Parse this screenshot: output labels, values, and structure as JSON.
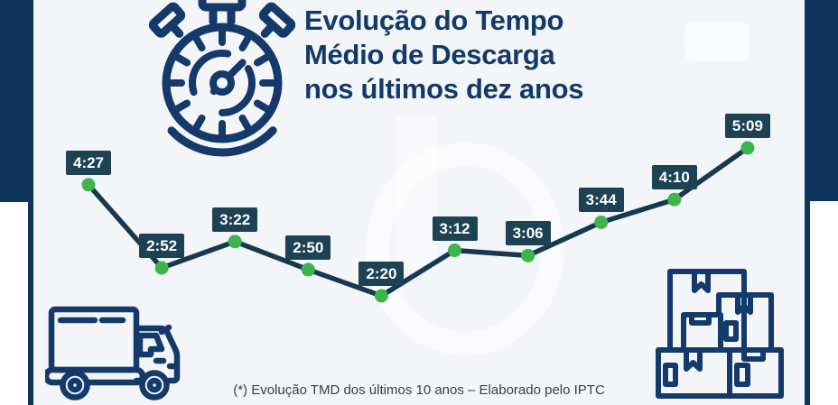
{
  "header": {
    "title_lines": [
      "Evolução do Tempo",
      "Médio de Descarga",
      "nos últimos dez anos"
    ],
    "title_color": "#113a6b"
  },
  "chart_data": {
    "type": "line",
    "title": "Evolução do Tempo Médio de Descarga nos últimos dez anos",
    "x": [
      1,
      2,
      3,
      4,
      5,
      6,
      7,
      8,
      9,
      10
    ],
    "values": [
      "4:27",
      "2:52",
      "3:22",
      "2:50",
      "2:20",
      "3:12",
      "3:06",
      "3:44",
      "4:10",
      "5:09"
    ],
    "values_minutes": [
      267,
      172,
      202,
      170,
      140,
      192,
      186,
      224,
      250,
      309
    ],
    "grid": false,
    "legend": false,
    "axes_visible": false,
    "line_color": "#16394f",
    "marker_color": "#3cb54c",
    "label_bg": "#1d4254",
    "label_text_color": "#ffffff"
  },
  "footer": {
    "note": "(*) Evolução TMD dos últimos 10 anos – Elaborado pelo IPTC"
  },
  "theme": {
    "frame_navy": "#0e355e",
    "card_background": "#f4f5f8",
    "icon_navy": "#14396b"
  },
  "icons": {
    "stopwatch": "stopwatch-icon",
    "truck": "delivery-truck-icon",
    "boxes": "cargo-boxes-icon"
  }
}
